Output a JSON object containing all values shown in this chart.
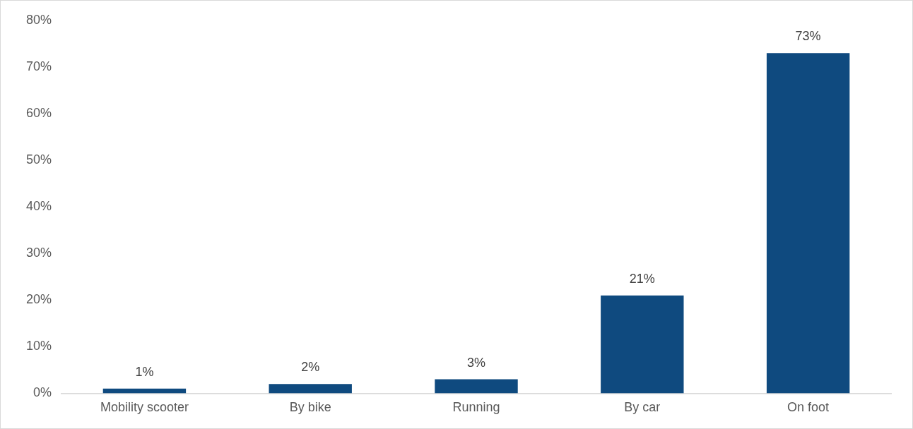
{
  "chart_data": {
    "type": "bar",
    "categories": [
      "Mobility scooter",
      "By bike",
      "Running",
      "By car",
      "On foot"
    ],
    "values": [
      1,
      2,
      3,
      21,
      73
    ],
    "value_labels": [
      "1%",
      "2%",
      "3%",
      "21%",
      "73%"
    ],
    "color": "#0f4a7f",
    "ylim": [
      0,
      80
    ],
    "yticks": [
      {
        "value": 0,
        "label": "0%"
      },
      {
        "value": 10,
        "label": "10%"
      },
      {
        "value": 20,
        "label": "20%"
      },
      {
        "value": 30,
        "label": "30%"
      },
      {
        "value": 40,
        "label": "40%"
      },
      {
        "value": 50,
        "label": "50%"
      },
      {
        "value": 60,
        "label": "60%"
      },
      {
        "value": 70,
        "label": "70%"
      },
      {
        "value": 80,
        "label": "80%"
      }
    ],
    "grid": false,
    "legend": false
  }
}
